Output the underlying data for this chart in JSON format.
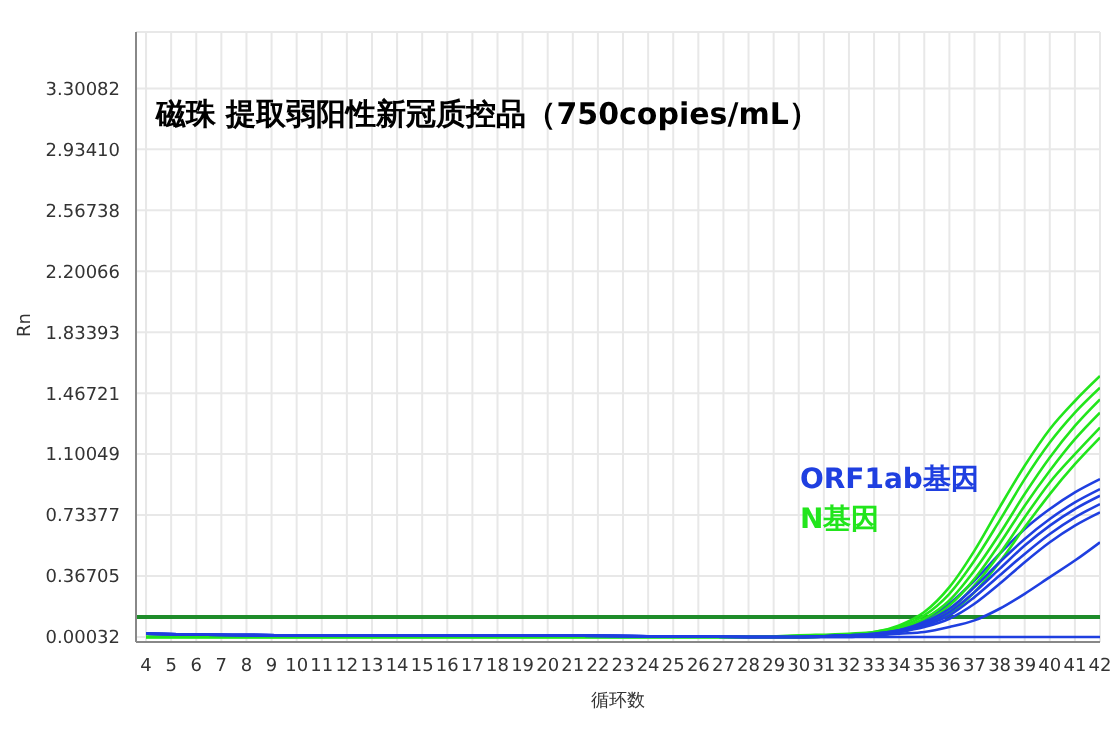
{
  "chart_data": {
    "type": "line",
    "title": "磁珠 提取弱阳性新冠质控品（750copies/mL）",
    "xlabel": "循环数",
    "ylabel": "Rn",
    "x": [
      4,
      10,
      20,
      28,
      30,
      32,
      33,
      34,
      35,
      36,
      37,
      38,
      39,
      40,
      41,
      42
    ],
    "xlim": [
      3.6,
      42
    ],
    "xticks": [
      4,
      5,
      6,
      7,
      8,
      9,
      10,
      11,
      12,
      13,
      14,
      15,
      16,
      17,
      18,
      19,
      20,
      21,
      22,
      23,
      24,
      25,
      26,
      27,
      28,
      29,
      30,
      31,
      32,
      33,
      34,
      35,
      36,
      37,
      38,
      39,
      40,
      41,
      42
    ],
    "ylim": [
      -0.03,
      3.64
    ],
    "yticks": [
      {
        "value": 0.00032,
        "label": "0.00032"
      },
      {
        "value": 0.36705,
        "label": "0.36705"
      },
      {
        "value": 0.73377,
        "label": "0.73377"
      },
      {
        "value": 1.10049,
        "label": "1.10049"
      },
      {
        "value": 1.46721,
        "label": "1.46721"
      },
      {
        "value": 1.83393,
        "label": "1.83393"
      },
      {
        "value": 2.20066,
        "label": "2.20066"
      },
      {
        "value": 2.56738,
        "label": "2.56738"
      },
      {
        "value": 2.9341,
        "label": "2.93410"
      },
      {
        "value": 3.30082,
        "label": "3.30082"
      }
    ],
    "grid": true,
    "line_style": "solid",
    "ref_lines": [
      {
        "axis": "y",
        "value": 0.12,
        "color": "#1e8c2a"
      }
    ],
    "series": [
      {
        "name": "ORF1ab基因",
        "color": "#1f3fe0",
        "values": [
          0.02,
          0.01,
          0.01,
          0,
          0,
          0.01,
          0.02,
          0.05,
          0.1,
          0.2,
          0.34,
          0.5,
          0.65,
          0.77,
          0.87,
          0.95
        ]
      },
      {
        "name": "N基因",
        "color": "#22e51c",
        "values": [
          0,
          0,
          0,
          0,
          0.01,
          0.02,
          0.03,
          0.07,
          0.15,
          0.3,
          0.52,
          0.78,
          1.03,
          1.25,
          1.42,
          1.57
        ]
      },
      {
        "color": "#22e51c",
        "values": [
          0,
          0,
          0,
          0,
          0,
          0.01,
          0.03,
          0.06,
          0.13,
          0.26,
          0.46,
          0.7,
          0.95,
          1.17,
          1.35,
          1.5
        ]
      },
      {
        "color": "#22e51c",
        "values": [
          0,
          0,
          0,
          0,
          0,
          0.01,
          0.02,
          0.05,
          0.11,
          0.22,
          0.4,
          0.62,
          0.86,
          1.08,
          1.27,
          1.43
        ]
      },
      {
        "color": "#22e51c",
        "values": [
          0,
          0,
          0,
          0,
          0,
          0.01,
          0.02,
          0.04,
          0.09,
          0.19,
          0.35,
          0.56,
          0.79,
          1.0,
          1.19,
          1.35
        ]
      },
      {
        "color": "#22e51c",
        "values": [
          0,
          0,
          0,
          0,
          0,
          0.01,
          0.02,
          0.04,
          0.08,
          0.16,
          0.31,
          0.5,
          0.72,
          0.93,
          1.1,
          1.26
        ]
      },
      {
        "color": "#22e51c",
        "values": [
          0,
          0,
          0,
          0,
          0,
          0.01,
          0.01,
          0.03,
          0.07,
          0.14,
          0.27,
          0.45,
          0.66,
          0.86,
          1.04,
          1.2
        ]
      },
      {
        "color": "#1f3fe0",
        "values": [
          0.02,
          0.01,
          0.01,
          0,
          0,
          0.01,
          0.02,
          0.04,
          0.09,
          0.17,
          0.3,
          0.45,
          0.59,
          0.71,
          0.81,
          0.89
        ]
      },
      {
        "color": "#1f3fe0",
        "values": [
          0.02,
          0.01,
          0.01,
          0,
          0,
          0.01,
          0.02,
          0.04,
          0.08,
          0.15,
          0.27,
          0.41,
          0.55,
          0.67,
          0.77,
          0.85
        ]
      },
      {
        "color": "#1f3fe0",
        "values": [
          0.02,
          0.01,
          0.01,
          0,
          0,
          0.01,
          0.01,
          0.03,
          0.07,
          0.13,
          0.24,
          0.37,
          0.5,
          0.62,
          0.72,
          0.8
        ]
      },
      {
        "color": "#1f3fe0",
        "values": [
          0.02,
          0.01,
          0.01,
          0,
          0,
          0.01,
          0.01,
          0.03,
          0.06,
          0.11,
          0.2,
          0.32,
          0.45,
          0.57,
          0.67,
          0.75
        ]
      },
      {
        "color": "#1f3fe0",
        "values": [
          0.02,
          0.01,
          0.01,
          0,
          0,
          0,
          0.01,
          0.02,
          0.03,
          0.06,
          0.1,
          0.17,
          0.26,
          0.36,
          0.46,
          0.57
        ]
      },
      {
        "color": "#1f3fe0",
        "values": [
          0.02,
          0.01,
          0.01,
          0,
          0,
          0,
          0,
          0,
          0,
          0,
          0,
          0,
          0,
          0,
          0,
          0
        ]
      }
    ]
  }
}
